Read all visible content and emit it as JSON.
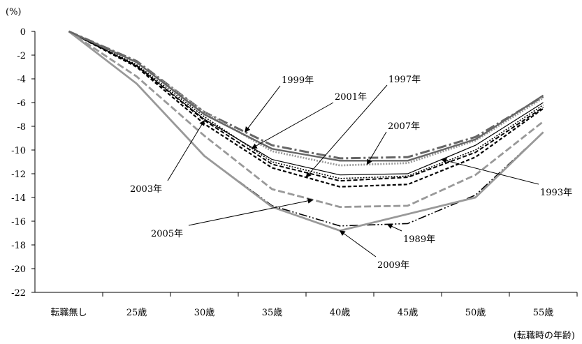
{
  "chart_data": {
    "type": "line",
    "ylabel": "(%)",
    "xlabel": "(転職時の年齢)",
    "ylim": [
      -22,
      0
    ],
    "yticks": [
      0,
      -2,
      -4,
      -6,
      -8,
      -10,
      -12,
      -14,
      -16,
      -18,
      -20,
      -22
    ],
    "categories": [
      "転職無し",
      "25歳",
      "30歳",
      "35歳",
      "40歳",
      "45歳",
      "50歳",
      "55歳"
    ],
    "grid": false,
    "legend": "none (series labeled by callouts)",
    "series": [
      {
        "name": "1989年",
        "color": "#000000",
        "dash": "12,3,2,3,2,3",
        "width": 1.6,
        "values": [
          0,
          -4.4,
          -10.5,
          -14.7,
          -16.4,
          -16.2,
          -13.8,
          -8.5
        ]
      },
      {
        "name": "1993年",
        "color": "#000000",
        "dash": "",
        "width": 1.2,
        "values": [
          0,
          -2.9,
          -7.4,
          -10.8,
          -12.1,
          -12.0,
          -9.6,
          -6.0
        ]
      },
      {
        "name": "1997年",
        "color": "#000000",
        "dash": "5,3",
        "width": 2.2,
        "values": [
          0,
          -3.0,
          -7.8,
          -11.5,
          -13.1,
          -12.9,
          -10.6,
          -6.5
        ]
      },
      {
        "name": "1999年",
        "color": "#666666",
        "dash": "14,4,3,4",
        "width": 3,
        "values": [
          0,
          -2.5,
          -6.8,
          -9.6,
          -10.7,
          -10.6,
          -8.9,
          -5.5
        ]
      },
      {
        "name": "2001年",
        "color": "#000000",
        "dash": "2,2",
        "width": 1.6,
        "values": [
          0,
          -2.8,
          -7.2,
          -11.0,
          -12.4,
          -12.2,
          -10.0,
          -6.2
        ]
      },
      {
        "name": "2003年",
        "color": "#000000",
        "dash": "6,3",
        "width": 2,
        "values": [
          0,
          -2.9,
          -7.5,
          -11.2,
          -12.6,
          -12.3,
          -10.2,
          -6.4
        ]
      },
      {
        "name": "2005年",
        "color": "#999999",
        "dash": "10,4",
        "width": 2.8,
        "values": [
          0,
          -3.8,
          -8.8,
          -13.3,
          -14.8,
          -14.7,
          -12.1,
          -7.6
        ]
      },
      {
        "name": "2007年",
        "color": "#999999",
        "dash": "2,2",
        "width": 2.8,
        "values": [
          0,
          -2.6,
          -6.8,
          -10.1,
          -11.3,
          -11.1,
          -9.2,
          -5.6
        ]
      },
      {
        "name": "2009年",
        "color": "#999999",
        "dash": "",
        "width": 2.8,
        "values": [
          0,
          -4.4,
          -10.5,
          -14.8,
          -16.8,
          -15.4,
          -14.0,
          -8.5
        ]
      },
      {
        "name": "",
        "color": "#666666",
        "dash": "",
        "width": 2.4,
        "values": [
          0,
          -2.6,
          -7.0,
          -9.9,
          -10.9,
          -10.9,
          -9.1,
          -5.4
        ]
      }
    ],
    "annotations": [
      {
        "text": "1999年",
        "series": "1999年",
        "at": 2.6
      },
      {
        "text": "2001年",
        "series": "2001年",
        "at": 2.7
      },
      {
        "text": "1997年",
        "series": "1997年",
        "at": 3.5
      },
      {
        "text": "2007年",
        "series": "2007年",
        "at": 4.4
      },
      {
        "text": "2003年",
        "series": "2003年",
        "at": 2.0
      },
      {
        "text": "1993年",
        "series": "1993年",
        "at": 5.5
      },
      {
        "text": "2005年",
        "series": "2005年",
        "at": 3.6
      },
      {
        "text": "1989年",
        "series": "1989年",
        "at": 4.7
      },
      {
        "text": "2009年",
        "series": "2009年",
        "at": 4.0
      }
    ]
  }
}
